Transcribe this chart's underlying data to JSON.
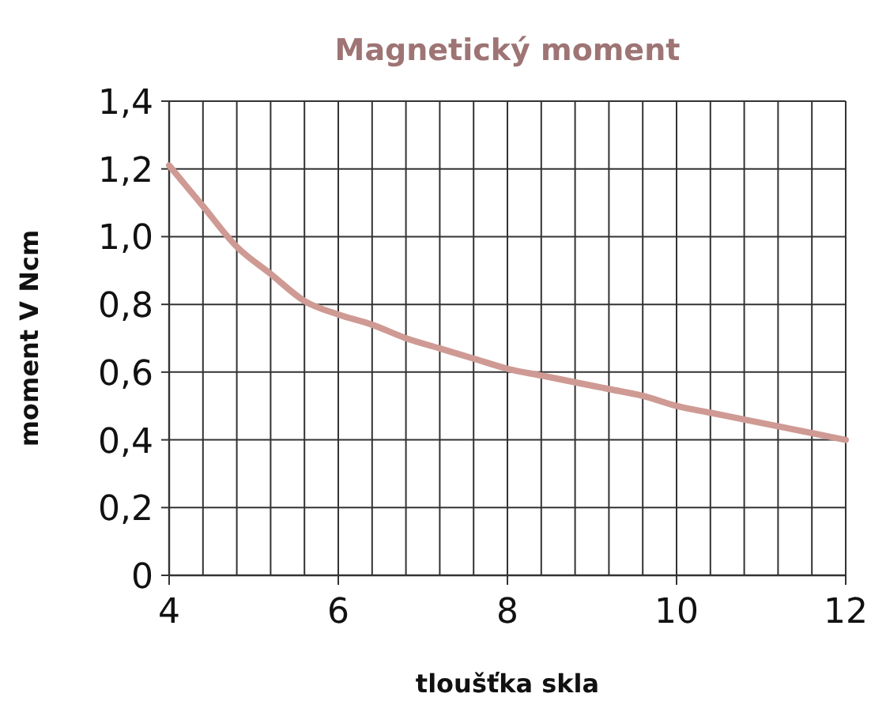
{
  "chart_data": {
    "type": "line",
    "title": "Magnetický moment",
    "xlabel": "tloušťka skla",
    "ylabel": "moment V Ncm",
    "x": [
      4,
      4.4,
      4.8,
      5.2,
      5.6,
      6,
      6.4,
      6.8,
      7.2,
      7.6,
      8,
      8.4,
      8.8,
      9.2,
      9.6,
      10,
      10.4,
      10.8,
      11.2,
      11.6,
      12
    ],
    "series": [
      {
        "color": "#cf9a94",
        "values": [
          1.21,
          1.09,
          0.97,
          0.89,
          0.81,
          0.77,
          0.74,
          0.7,
          0.67,
          0.64,
          0.61,
          0.59,
          0.57,
          0.55,
          0.53,
          0.5,
          0.48,
          0.46,
          0.44,
          0.42,
          0.4
        ]
      }
    ],
    "xlim": [
      4,
      12
    ],
    "xticks": [
      4,
      {
        "value": 4.4,
        "label": null
      },
      {
        "value": 4.8,
        "label": null
      },
      {
        "value": 5.2,
        "label": null
      },
      {
        "value": 5.6,
        "label": null
      },
      6,
      {
        "value": 6.4,
        "label": null
      },
      {
        "value": 6.8,
        "label": null
      },
      {
        "value": 7.2,
        "label": null
      },
      {
        "value": 7.6,
        "label": null
      },
      8,
      {
        "value": 8.4,
        "label": null
      },
      {
        "value": 8.8,
        "label": null
      },
      {
        "value": 9.2,
        "label": null
      },
      {
        "value": 9.6,
        "label": null
      },
      10,
      {
        "value": 10.4,
        "label": null
      },
      {
        "value": 10.8,
        "label": null
      },
      {
        "value": 11.2,
        "label": null
      },
      {
        "value": 11.6,
        "label": null
      },
      12
    ],
    "ylim": [
      0,
      1.4
    ],
    "yticks": [
      {
        "value": 0,
        "label": "0"
      },
      {
        "value": 0.2,
        "label": "0,2"
      },
      {
        "value": 0.4,
        "label": "0,4"
      },
      {
        "value": 0.6,
        "label": "0,6"
      },
      {
        "value": 0.8,
        "label": "0,8"
      },
      {
        "value": 1.0,
        "label": "1,0"
      },
      {
        "value": 1.2,
        "label": "1,2"
      },
      {
        "value": 1.4,
        "label": "1,4"
      }
    ],
    "grid": true,
    "marker": "none",
    "line_style": "solid"
  }
}
